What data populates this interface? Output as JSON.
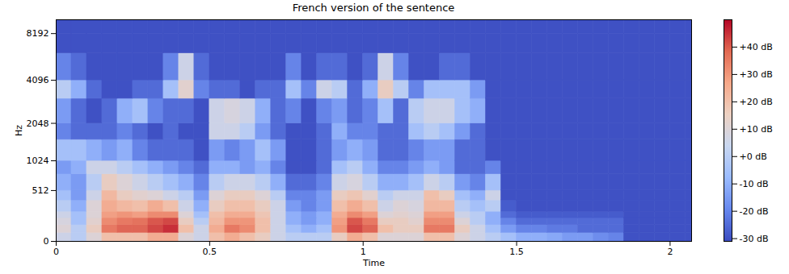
{
  "chart_data": {
    "type": "heatmap",
    "title": "French version of the sentence",
    "x_label": "Time",
    "y_label": "Hz",
    "xlim": [
      0,
      2.07
    ],
    "ylim": [
      0,
      10000
    ],
    "xticks": [
      0,
      0.5,
      1,
      1.5,
      2
    ],
    "yticks": [
      0,
      512,
      1024,
      2048,
      4096,
      8192
    ],
    "log": "y",
    "time_edges": [
      0,
      0.05,
      0.1,
      0.15,
      0.2,
      0.25,
      0.3,
      0.35,
      0.4,
      0.45,
      0.5,
      0.55,
      0.6,
      0.65,
      0.7,
      0.75,
      0.8,
      0.85,
      0.9,
      0.95,
      1.0,
      1.05,
      1.1,
      1.15,
      1.2,
      1.25,
      1.3,
      1.35,
      1.4,
      1.45,
      1.5,
      1.55,
      1.6,
      1.65,
      1.7,
      1.75,
      1.8,
      1.85,
      1.9,
      1.95,
      2.0,
      2.05,
      2.07
    ],
    "freq_edges": [
      0,
      64,
      128,
      192,
      256,
      384,
      512,
      768,
      1024,
      1536,
      2048,
      3072,
      4096,
      6144,
      8192,
      10000
    ],
    "cells_db": [
      [
        5,
        0,
        10,
        20,
        20,
        20,
        25,
        25,
        10,
        5,
        20,
        25,
        20,
        15,
        5,
        0,
        0,
        0,
        15,
        25,
        20,
        10,
        10,
        10,
        20,
        20,
        10,
        5,
        0,
        -5,
        -10,
        -10,
        -12,
        -15,
        -15,
        -18,
        -20,
        -30,
        -30,
        -30,
        -30,
        -30
      ],
      [
        10,
        0,
        15,
        35,
        38,
        38,
        42,
        45,
        20,
        5,
        25,
        35,
        32,
        20,
        5,
        -5,
        -10,
        -5,
        30,
        42,
        38,
        20,
        15,
        15,
        35,
        35,
        15,
        5,
        -5,
        -15,
        -20,
        -20,
        -22,
        -22,
        -25,
        -25,
        -25,
        -30,
        -30,
        -30,
        -30,
        -30
      ],
      [
        8,
        -5,
        12,
        32,
        35,
        36,
        40,
        42,
        15,
        0,
        22,
        30,
        30,
        20,
        5,
        -10,
        -15,
        -10,
        28,
        40,
        35,
        15,
        15,
        12,
        32,
        32,
        10,
        0,
        -10,
        -20,
        -25,
        -25,
        -25,
        -25,
        -25,
        -25,
        -25,
        -30,
        -30,
        -30,
        -30,
        -30
      ],
      [
        5,
        -5,
        10,
        28,
        30,
        28,
        32,
        32,
        10,
        -5,
        20,
        25,
        25,
        18,
        5,
        -10,
        -15,
        -10,
        25,
        32,
        28,
        10,
        12,
        10,
        28,
        28,
        5,
        0,
        -10,
        -25,
        -28,
        -28,
        -28,
        -28,
        -28,
        -28,
        -28,
        -30,
        -30,
        -30,
        -30,
        -30
      ],
      [
        0,
        -10,
        10,
        25,
        22,
        20,
        25,
        20,
        5,
        -10,
        15,
        20,
        20,
        15,
        5,
        -15,
        -20,
        -15,
        20,
        25,
        20,
        5,
        10,
        8,
        22,
        22,
        0,
        -5,
        0,
        -28,
        -30,
        -30,
        -30,
        -30,
        -30,
        -30,
        -30,
        -30,
        -30,
        -30,
        -30,
        -30
      ],
      [
        -5,
        -15,
        5,
        22,
        15,
        12,
        10,
        5,
        0,
        -15,
        10,
        15,
        15,
        10,
        0,
        -20,
        -20,
        -15,
        15,
        18,
        12,
        0,
        5,
        5,
        20,
        15,
        -5,
        -10,
        5,
        -30,
        -30,
        -30,
        -30,
        -30,
        -30,
        -30,
        -30,
        -30,
        -30,
        -30,
        -30,
        -30
      ],
      [
        -10,
        -15,
        0,
        15,
        10,
        5,
        0,
        -5,
        -10,
        -20,
        0,
        5,
        5,
        0,
        -10,
        -25,
        -25,
        -20,
        5,
        8,
        0,
        -10,
        -10,
        -5,
        5,
        0,
        -15,
        -20,
        -5,
        -30,
        -30,
        -30,
        -30,
        -30,
        -30,
        -30,
        -30,
        -30,
        -30,
        -30,
        -30,
        -30
      ],
      [
        -15,
        -10,
        5,
        5,
        0,
        -5,
        -10,
        -15,
        -20,
        -25,
        -10,
        -10,
        -15,
        -10,
        -20,
        -30,
        -30,
        -25,
        -5,
        0,
        -10,
        -20,
        -20,
        -15,
        -10,
        -15,
        -25,
        -25,
        -20,
        -30,
        -30,
        -30,
        -30,
        -30,
        -30,
        -30,
        -30,
        -30,
        -30,
        -30,
        -30,
        -30
      ],
      [
        -5,
        -5,
        -10,
        -15,
        -10,
        -20,
        -25,
        -25,
        -25,
        -30,
        -15,
        -20,
        -15,
        -5,
        -15,
        -30,
        -30,
        -25,
        -15,
        -10,
        -15,
        -25,
        -25,
        -20,
        -15,
        -15,
        -25,
        -25,
        -30,
        -30,
        -30,
        -30,
        -30,
        -30,
        -30,
        -30,
        -30,
        -30,
        -30,
        -30,
        -30,
        -30
      ],
      [
        -20,
        -25,
        -25,
        -25,
        -20,
        -25,
        -30,
        -25,
        -30,
        -30,
        5,
        5,
        0,
        -15,
        -25,
        -30,
        -30,
        -25,
        -10,
        -20,
        -20,
        -25,
        -25,
        -5,
        0,
        -5,
        -15,
        -25,
        -30,
        -30,
        -30,
        -30,
        -30,
        -30,
        -30,
        -30,
        -30,
        -30,
        -30,
        -30,
        -30,
        -30
      ],
      [
        -15,
        -25,
        -30,
        -25,
        -10,
        -5,
        -20,
        -25,
        -25,
        -30,
        5,
        8,
        5,
        -10,
        -25,
        -20,
        -30,
        -20,
        -15,
        -25,
        -20,
        -5,
        -25,
        0,
        5,
        5,
        -5,
        -10,
        -30,
        -30,
        -30,
        -30,
        -30,
        -30,
        -30,
        -30,
        -30,
        -30,
        -30,
        -30,
        -30,
        -30
      ],
      [
        0,
        -10,
        -25,
        -30,
        -30,
        -25,
        -25,
        -5,
        12,
        -20,
        -25,
        -25,
        -30,
        -25,
        -25,
        -5,
        -20,
        5,
        0,
        -25,
        -10,
        15,
        0,
        -20,
        -5,
        -5,
        -5,
        -15,
        -30,
        -30,
        -30,
        -30,
        -30,
        -30,
        -30,
        -30,
        -30,
        -30,
        -30,
        -30,
        -30,
        -30
      ],
      [
        -20,
        -25,
        -30,
        -30,
        -30,
        -30,
        -30,
        -20,
        5,
        -25,
        -30,
        -30,
        -30,
        -30,
        -30,
        -20,
        -30,
        -25,
        -25,
        -30,
        -25,
        5,
        -20,
        -30,
        -30,
        -25,
        -25,
        -30,
        -30,
        -30,
        -30,
        -30,
        -30,
        -30,
        -30,
        -30,
        -30,
        -30,
        -30,
        -30,
        -30,
        -30
      ],
      [
        -30,
        -30,
        -30,
        -30,
        -30,
        -30,
        -30,
        -30,
        -30,
        -30,
        -30,
        -30,
        -30,
        -30,
        -30,
        -30,
        -30,
        -30,
        -30,
        -30,
        -30,
        -30,
        -30,
        -30,
        -30,
        -30,
        -30,
        -30,
        -30,
        -30,
        -30,
        -30,
        -30,
        -30,
        -30,
        -30,
        -30,
        -30,
        -30,
        -30,
        -30,
        -30
      ],
      [
        -30,
        -30,
        -30,
        -30,
        -30,
        -30,
        -30,
        -30,
        -30,
        -30,
        -30,
        -30,
        -30,
        -30,
        -30,
        -30,
        -30,
        -30,
        -30,
        -30,
        -30,
        -30,
        -30,
        -30,
        -30,
        -30,
        -30,
        -30,
        -30,
        -30,
        -30,
        -30,
        -30,
        -30,
        -30,
        -30,
        -30,
        -30,
        -30,
        -30,
        -30,
        -30
      ]
    ],
    "colorbar": {
      "range": [
        -31,
        50
      ],
      "ticks": [
        {
          "value": -30,
          "label": "-30 dB"
        },
        {
          "value": -20,
          "label": "-20 dB"
        },
        {
          "value": -10,
          "label": "-10 dB"
        },
        {
          "value": 0,
          "label": "+0 dB"
        },
        {
          "value": 10,
          "label": "+10 dB"
        },
        {
          "value": 20,
          "label": "+20 dB"
        },
        {
          "value": 30,
          "label": "+30 dB"
        },
        {
          "value": 40,
          "label": "+40 dB"
        }
      ]
    }
  }
}
